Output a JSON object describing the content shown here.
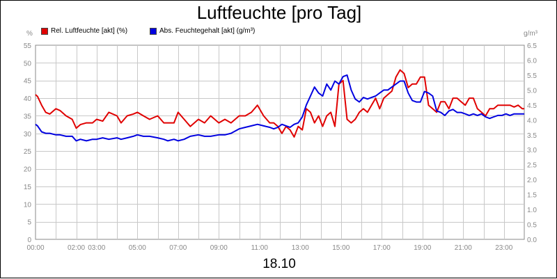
{
  "chart_data": {
    "type": "line",
    "title": "Luftfeuchte [pro Tag]",
    "date_label": "18.10",
    "y_left": {
      "unit": "%",
      "ylim": [
        0,
        55
      ],
      "ticks": [
        0,
        5,
        10,
        15,
        20,
        25,
        30,
        35,
        40,
        45,
        50,
        55
      ]
    },
    "y_right": {
      "unit": "g/m³",
      "ylim": [
        0,
        6.5
      ],
      "ticks": [
        "0.0",
        "0.5",
        "1.0",
        "1.5",
        "2.0",
        "2.5",
        "3.0",
        "3.5",
        "4.0",
        "4.5",
        "5.0",
        "5.5",
        "6.0",
        "6.5"
      ]
    },
    "x_ticks": [
      "00:00",
      "02:00",
      "03:00",
      "05:00",
      "07:00",
      "09:00",
      "11:00",
      "13:00",
      "15:00",
      "17:00",
      "19:00",
      "21:00",
      "23:00"
    ],
    "x_tick_hours": [
      0,
      2,
      3,
      5,
      7,
      9,
      11,
      13,
      15,
      17,
      19,
      21,
      23
    ],
    "xlim_hours": [
      0,
      24
    ],
    "grid": true,
    "legend_placement": "top-left",
    "colors": {
      "rel": "#e00000",
      "abs": "#0000e0"
    },
    "series": [
      {
        "name": "Rel. Luftfeuchte [akt] (%)",
        "axis": "left",
        "x": [
          0,
          0.1,
          0.3,
          0.5,
          0.7,
          1,
          1.2,
          1.5,
          1.8,
          2,
          2.2,
          2.5,
          2.8,
          3,
          3.3,
          3.6,
          4,
          4.2,
          4.5,
          4.8,
          5,
          5.3,
          5.6,
          6,
          6.3,
          6.5,
          6.8,
          7,
          7.3,
          7.6,
          8,
          8.3,
          8.6,
          9,
          9.3,
          9.6,
          10,
          10.3,
          10.6,
          10.9,
          11.2,
          11.5,
          11.7,
          11.9,
          12.1,
          12.3,
          12.5,
          12.7,
          12.9,
          13.1,
          13.3,
          13.5,
          13.7,
          13.9,
          14.1,
          14.3,
          14.5,
          14.7,
          14.9,
          15.1,
          15.3,
          15.5,
          15.7,
          15.9,
          16.1,
          16.3,
          16.5,
          16.7,
          16.9,
          17.1,
          17.3,
          17.5,
          17.7,
          17.9,
          18.1,
          18.3,
          18.5,
          18.7,
          18.9,
          19.1,
          19.3,
          19.5,
          19.7,
          19.9,
          20.1,
          20.3,
          20.5,
          20.7,
          20.9,
          21.1,
          21.3,
          21.5,
          21.7,
          21.9,
          22.1,
          22.3,
          22.5,
          22.7,
          22.9,
          23.1,
          23.3,
          23.5,
          23.7,
          23.9,
          24
        ],
        "values": [
          41,
          40.5,
          38,
          36,
          35.5,
          37,
          36.5,
          35,
          34,
          31.5,
          32.5,
          33,
          33,
          34,
          33.5,
          36,
          35,
          33,
          35,
          35.5,
          36,
          35,
          34,
          35,
          33,
          33,
          33,
          36,
          34,
          32,
          34,
          33,
          35,
          33,
          34,
          33,
          35,
          35,
          36,
          38,
          35,
          33,
          33,
          32,
          30,
          32,
          31,
          29,
          32,
          31,
          37,
          36,
          33,
          35,
          32,
          35,
          36,
          32,
          44,
          45,
          34,
          33,
          34,
          36,
          37,
          36,
          38,
          40,
          37,
          40,
          41,
          42,
          46,
          48,
          47,
          43,
          44,
          44,
          46,
          46,
          38,
          37,
          36,
          39,
          39,
          37,
          40,
          40,
          39,
          38,
          40,
          40,
          37,
          36,
          35,
          37,
          37,
          38,
          38,
          38,
          38,
          37.5,
          38,
          37,
          37
        ]
      },
      {
        "name": "Abs. Feuchtegehalt [akt] (g/m³)",
        "axis": "right",
        "x": [
          0,
          0.1,
          0.3,
          0.5,
          0.7,
          1,
          1.2,
          1.5,
          1.8,
          2,
          2.2,
          2.5,
          2.8,
          3,
          3.3,
          3.6,
          4,
          4.2,
          4.5,
          4.8,
          5,
          5.3,
          5.6,
          6,
          6.3,
          6.5,
          6.8,
          7,
          7.3,
          7.6,
          8,
          8.3,
          8.6,
          9,
          9.3,
          9.6,
          10,
          10.3,
          10.6,
          10.9,
          11.2,
          11.5,
          11.7,
          11.9,
          12.1,
          12.3,
          12.5,
          12.7,
          12.9,
          13.1,
          13.3,
          13.5,
          13.7,
          13.9,
          14.1,
          14.3,
          14.5,
          14.7,
          14.9,
          15.1,
          15.3,
          15.5,
          15.7,
          15.9,
          16.1,
          16.3,
          16.5,
          16.7,
          16.9,
          17.1,
          17.3,
          17.5,
          17.7,
          17.9,
          18.1,
          18.3,
          18.5,
          18.7,
          18.9,
          19.1,
          19.3,
          19.5,
          19.7,
          19.9,
          20.1,
          20.3,
          20.5,
          20.7,
          20.9,
          21.1,
          21.3,
          21.5,
          21.7,
          21.9,
          22.1,
          22.3,
          22.5,
          22.7,
          22.9,
          23.1,
          23.3,
          23.5,
          23.7,
          23.9,
          24
        ],
        "values": [
          3.85,
          3.8,
          3.6,
          3.55,
          3.55,
          3.5,
          3.5,
          3.45,
          3.45,
          3.3,
          3.35,
          3.3,
          3.35,
          3.35,
          3.4,
          3.35,
          3.4,
          3.35,
          3.4,
          3.45,
          3.5,
          3.45,
          3.45,
          3.4,
          3.35,
          3.3,
          3.35,
          3.3,
          3.35,
          3.45,
          3.5,
          3.45,
          3.45,
          3.5,
          3.5,
          3.55,
          3.7,
          3.75,
          3.8,
          3.85,
          3.8,
          3.75,
          3.7,
          3.75,
          3.85,
          3.8,
          3.75,
          3.85,
          3.9,
          4.1,
          4.5,
          4.8,
          5.1,
          4.9,
          4.8,
          5.2,
          5.0,
          5.3,
          5.2,
          5.45,
          5.5,
          5.0,
          4.7,
          4.6,
          4.75,
          4.7,
          4.75,
          4.8,
          4.9,
          5.0,
          5.0,
          5.1,
          5.2,
          5.3,
          5.3,
          4.9,
          4.65,
          4.6,
          4.6,
          4.95,
          4.9,
          4.8,
          4.3,
          4.25,
          4.15,
          4.3,
          4.35,
          4.25,
          4.25,
          4.2,
          4.15,
          4.2,
          4.15,
          4.2,
          4.1,
          4.05,
          4.1,
          4.15,
          4.15,
          4.2,
          4.15,
          4.2,
          4.2,
          4.2,
          4.2
        ]
      }
    ]
  }
}
